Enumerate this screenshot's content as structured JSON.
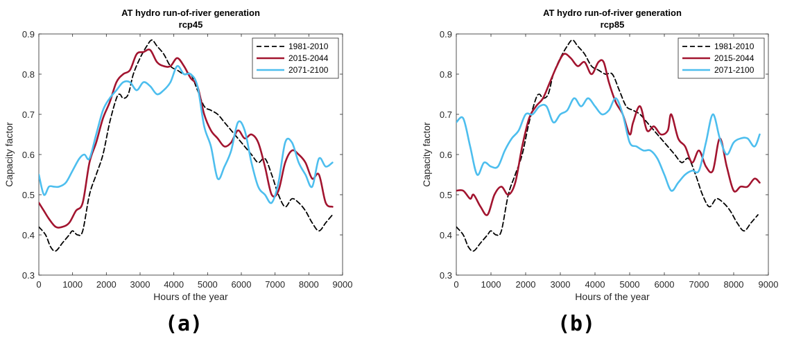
{
  "chart_data": [
    {
      "type": "line",
      "title": "AT hydro run-of-river generation",
      "subtitle": "rcp45",
      "xlabel": "Hours of the year",
      "ylabel": "Capacity factor",
      "xlim": [
        0,
        9000
      ],
      "ylim": [
        0.3,
        0.9
      ],
      "xticks": [
        0,
        1000,
        2000,
        3000,
        4000,
        5000,
        6000,
        7000,
        8000,
        9000
      ],
      "yticks": [
        0.3,
        0.4,
        0.5,
        0.6,
        0.7,
        0.8,
        0.9
      ],
      "legend_position": "top-right",
      "panel_label": "(a)",
      "series": [
        {
          "name": "1981-2010",
          "color": "#000000",
          "dash": "dashed",
          "x": [
            0,
            200,
            350,
            500,
            700,
            900,
            1000,
            1150,
            1300,
            1500,
            1700,
            1900,
            2100,
            2300,
            2400,
            2500,
            2650,
            2800,
            3000,
            3200,
            3350,
            3500,
            3700,
            3900,
            4100,
            4300,
            4500,
            4700,
            4900,
            5100,
            5300,
            5500,
            5700,
            5900,
            6100,
            6300,
            6500,
            6700,
            6900,
            7100,
            7300,
            7500,
            7700,
            7900,
            8100,
            8300,
            8500,
            8700
          ],
          "y": [
            0.42,
            0.4,
            0.37,
            0.36,
            0.38,
            0.4,
            0.41,
            0.4,
            0.41,
            0.5,
            0.55,
            0.6,
            0.68,
            0.74,
            0.75,
            0.74,
            0.75,
            0.8,
            0.84,
            0.87,
            0.885,
            0.87,
            0.85,
            0.82,
            0.81,
            0.8,
            0.8,
            0.76,
            0.72,
            0.71,
            0.7,
            0.68,
            0.66,
            0.64,
            0.62,
            0.6,
            0.58,
            0.59,
            0.55,
            0.5,
            0.47,
            0.49,
            0.48,
            0.46,
            0.43,
            0.41,
            0.43,
            0.45
          ]
        },
        {
          "name": "2015-2044",
          "color": "#A2142F",
          "dash": "solid",
          "x": [
            0,
            150,
            300,
            500,
            700,
            900,
            1100,
            1300,
            1500,
            1700,
            1900,
            2100,
            2300,
            2500,
            2700,
            2900,
            3100,
            3300,
            3500,
            3700,
            3900,
            4100,
            4300,
            4500,
            4700,
            4900,
            5100,
            5300,
            5500,
            5700,
            5900,
            6100,
            6300,
            6500,
            6700,
            6900,
            7100,
            7300,
            7500,
            7700,
            7900,
            8100,
            8300,
            8500,
            8700
          ],
          "y": [
            0.48,
            0.46,
            0.44,
            0.42,
            0.42,
            0.43,
            0.46,
            0.48,
            0.58,
            0.63,
            0.69,
            0.73,
            0.78,
            0.8,
            0.81,
            0.85,
            0.855,
            0.86,
            0.83,
            0.82,
            0.82,
            0.84,
            0.82,
            0.79,
            0.77,
            0.7,
            0.66,
            0.64,
            0.62,
            0.63,
            0.66,
            0.64,
            0.65,
            0.63,
            0.57,
            0.5,
            0.51,
            0.58,
            0.61,
            0.6,
            0.58,
            0.54,
            0.55,
            0.48,
            0.47
          ]
        },
        {
          "name": "2071-2100",
          "color": "#4DBEEE",
          "dash": "solid",
          "x": [
            0,
            150,
            300,
            450,
            600,
            800,
            1000,
            1200,
            1350,
            1500,
            1700,
            1900,
            2100,
            2300,
            2500,
            2700,
            2900,
            3100,
            3300,
            3500,
            3700,
            3900,
            4100,
            4300,
            4500,
            4700,
            4900,
            5100,
            5300,
            5500,
            5700,
            5900,
            6100,
            6300,
            6500,
            6700,
            6900,
            7100,
            7300,
            7500,
            7700,
            7900,
            8100,
            8300,
            8500,
            8700
          ],
          "y": [
            0.55,
            0.5,
            0.52,
            0.52,
            0.52,
            0.53,
            0.56,
            0.59,
            0.6,
            0.59,
            0.65,
            0.71,
            0.74,
            0.76,
            0.78,
            0.78,
            0.76,
            0.78,
            0.77,
            0.75,
            0.76,
            0.78,
            0.82,
            0.8,
            0.8,
            0.77,
            0.67,
            0.62,
            0.54,
            0.57,
            0.61,
            0.68,
            0.66,
            0.58,
            0.52,
            0.5,
            0.48,
            0.53,
            0.63,
            0.63,
            0.58,
            0.55,
            0.52,
            0.59,
            0.57,
            0.58
          ]
        }
      ]
    },
    {
      "type": "line",
      "title": "AT hydro run-of-river generation",
      "subtitle": "rcp85",
      "xlabel": "Hours of the year",
      "ylabel": "Capacity factor",
      "xlim": [
        0,
        9000
      ],
      "ylim": [
        0.3,
        0.9
      ],
      "xticks": [
        0,
        1000,
        2000,
        3000,
        4000,
        5000,
        6000,
        7000,
        8000,
        9000
      ],
      "yticks": [
        0.3,
        0.4,
        0.5,
        0.6,
        0.7,
        0.8,
        0.9
      ],
      "legend_position": "top-right",
      "panel_label": "(b)",
      "series": [
        {
          "name": "1981-2010",
          "color": "#000000",
          "dash": "dashed",
          "x": [
            0,
            200,
            350,
            500,
            700,
            900,
            1000,
            1150,
            1300,
            1500,
            1700,
            1900,
            2100,
            2300,
            2400,
            2500,
            2650,
            2800,
            3000,
            3200,
            3350,
            3500,
            3700,
            3900,
            4100,
            4300,
            4500,
            4700,
            4900,
            5100,
            5300,
            5500,
            5700,
            5900,
            6100,
            6300,
            6500,
            6700,
            6900,
            7100,
            7300,
            7500,
            7700,
            7900,
            8100,
            8300,
            8500,
            8700
          ],
          "y": [
            0.42,
            0.4,
            0.37,
            0.36,
            0.38,
            0.4,
            0.41,
            0.4,
            0.41,
            0.5,
            0.55,
            0.6,
            0.68,
            0.74,
            0.75,
            0.74,
            0.75,
            0.8,
            0.84,
            0.87,
            0.885,
            0.87,
            0.85,
            0.82,
            0.81,
            0.8,
            0.8,
            0.76,
            0.72,
            0.71,
            0.7,
            0.68,
            0.66,
            0.64,
            0.62,
            0.6,
            0.58,
            0.59,
            0.55,
            0.5,
            0.47,
            0.49,
            0.48,
            0.46,
            0.43,
            0.41,
            0.43,
            0.45
          ]
        },
        {
          "name": "2015-2044",
          "color": "#A2142F",
          "dash": "solid",
          "x": [
            0,
            200,
            400,
            500,
            700,
            900,
            1100,
            1300,
            1500,
            1700,
            1900,
            2100,
            2300,
            2500,
            2700,
            2900,
            3100,
            3300,
            3500,
            3700,
            3900,
            4100,
            4250,
            4400,
            4600,
            4800,
            5000,
            5100,
            5300,
            5500,
            5700,
            5900,
            6100,
            6200,
            6400,
            6600,
            6800,
            7000,
            7200,
            7400,
            7600,
            7800,
            8000,
            8200,
            8400,
            8600,
            8750
          ],
          "y": [
            0.51,
            0.51,
            0.49,
            0.5,
            0.47,
            0.45,
            0.5,
            0.52,
            0.5,
            0.53,
            0.62,
            0.69,
            0.72,
            0.74,
            0.78,
            0.82,
            0.85,
            0.84,
            0.82,
            0.83,
            0.8,
            0.83,
            0.83,
            0.78,
            0.73,
            0.7,
            0.65,
            0.68,
            0.72,
            0.66,
            0.67,
            0.65,
            0.66,
            0.7,
            0.64,
            0.62,
            0.58,
            0.61,
            0.57,
            0.56,
            0.64,
            0.57,
            0.51,
            0.52,
            0.52,
            0.54,
            0.53
          ]
        },
        {
          "name": "2071-2100",
          "color": "#4DBEEE",
          "dash": "solid",
          "x": [
            0,
            200,
            400,
            600,
            800,
            1000,
            1200,
            1400,
            1600,
            1800,
            2000,
            2200,
            2400,
            2600,
            2800,
            3000,
            3200,
            3400,
            3600,
            3800,
            4000,
            4200,
            4400,
            4600,
            4800,
            5000,
            5200,
            5400,
            5600,
            5800,
            6000,
            6200,
            6400,
            6600,
            6800,
            7000,
            7200,
            7400,
            7600,
            7800,
            8000,
            8200,
            8400,
            8600,
            8750
          ],
          "y": [
            0.68,
            0.69,
            0.62,
            0.55,
            0.58,
            0.57,
            0.57,
            0.61,
            0.64,
            0.66,
            0.7,
            0.7,
            0.72,
            0.72,
            0.68,
            0.7,
            0.71,
            0.74,
            0.72,
            0.74,
            0.72,
            0.7,
            0.71,
            0.74,
            0.7,
            0.63,
            0.62,
            0.61,
            0.61,
            0.59,
            0.55,
            0.51,
            0.53,
            0.55,
            0.56,
            0.56,
            0.63,
            0.7,
            0.64,
            0.6,
            0.63,
            0.64,
            0.64,
            0.62,
            0.65
          ]
        }
      ]
    }
  ]
}
